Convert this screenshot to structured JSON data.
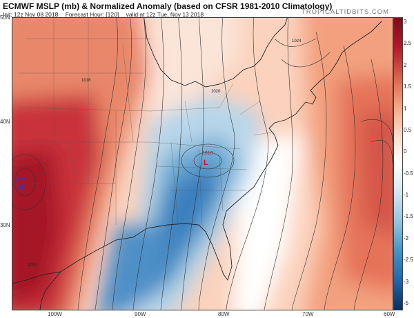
{
  "header": {
    "title": "ECMWF MSLP (mb) & Normalized Anomaly (based on CFSR 1981-2010 Climatology)",
    "init": "Init: 12z Nov 08 2018",
    "forecast_hour": "Forecast Hour: [120]",
    "valid": "valid at 12z Tue, Nov 13 2018",
    "brand": "TROPICALTIDBITS.COM"
  },
  "axes": {
    "lat_labels": [
      "50N",
      "40N",
      "30N"
    ],
    "lon_labels": [
      "100W",
      "90W",
      "80W",
      "70W",
      "60W"
    ]
  },
  "colorbar": {
    "ticks": [
      "3",
      "2.5",
      "2",
      "1.5",
      "1",
      "0.5",
      "0",
      "-0.5",
      "-1",
      "-1.5",
      "-2",
      "-2.5",
      "-3",
      "-5"
    ],
    "colors": [
      "#7a0d1e",
      "#b2182b",
      "#d6604d",
      "#f4a582",
      "#fddbc7",
      "#ffffff",
      "#d1e5f0",
      "#92c5de",
      "#4393c3",
      "#2166ac",
      "#053061"
    ]
  },
  "systems": {
    "low_value": "1010",
    "low_symbol": "L",
    "high_value": "1044",
    "high_symbol": "H"
  },
  "isobar_labels": [
    "1024",
    "1016",
    "1020",
    "1032"
  ]
}
